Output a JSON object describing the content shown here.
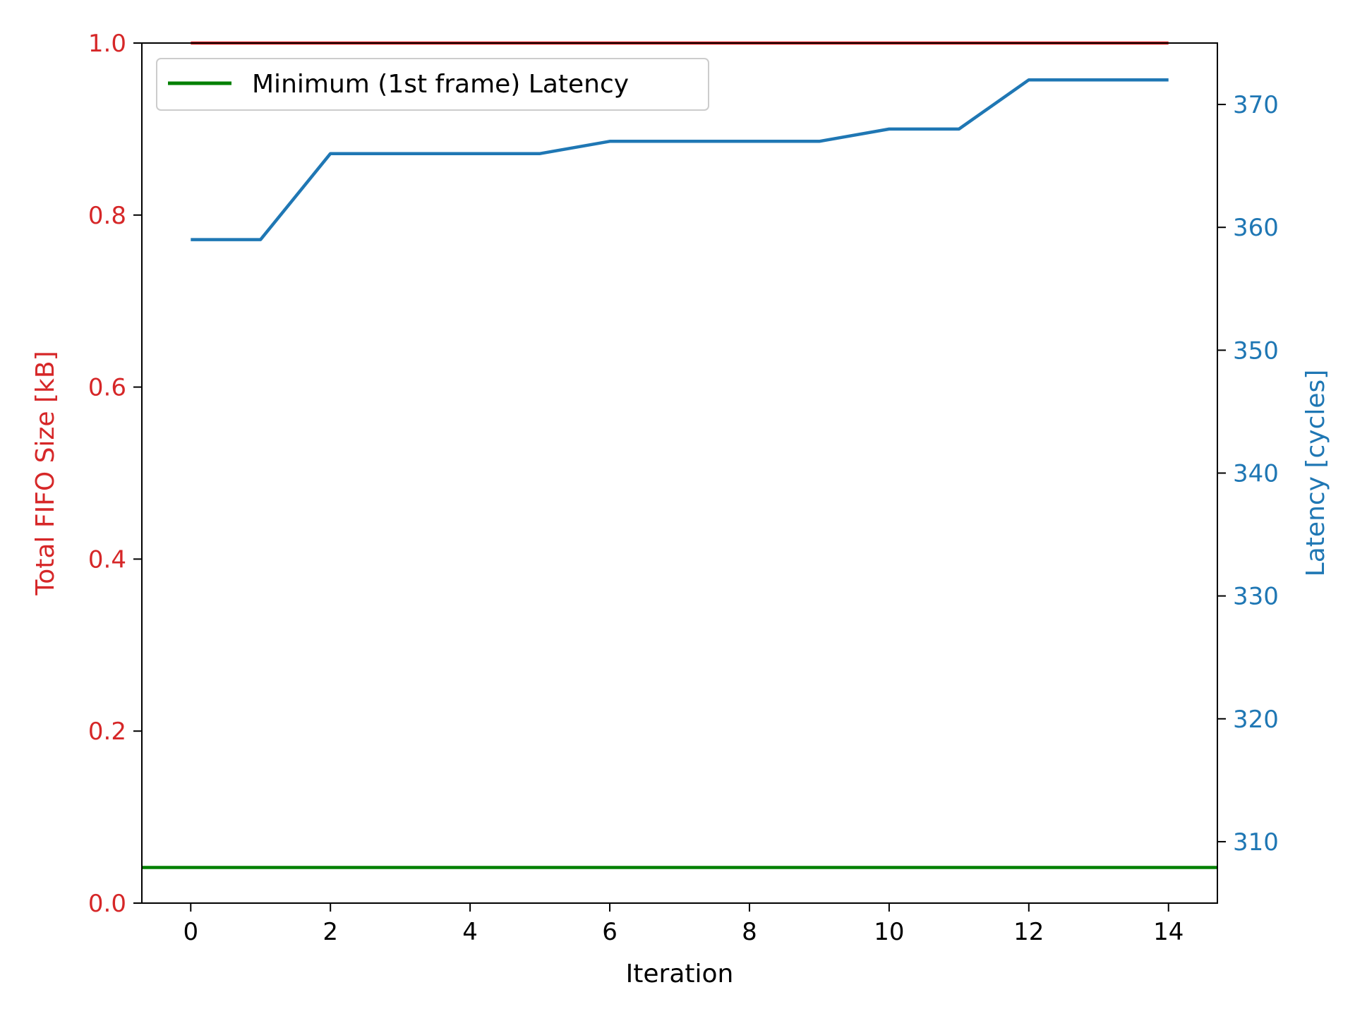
{
  "chart_data": {
    "type": "line",
    "xlabel": "Iteration",
    "ylabel_left": "Total FIFO Size [kB]",
    "ylabel_right": "Latency [cycles]",
    "xlim": [
      -0.7,
      14.7
    ],
    "ylim_left": [
      0.0,
      1.0
    ],
    "ylim_right": [
      305,
      375
    ],
    "x_ticks": [
      0,
      2,
      4,
      6,
      8,
      10,
      12,
      14
    ],
    "x_tick_labels": [
      "0",
      "2",
      "4",
      "6",
      "8",
      "10",
      "12",
      "14"
    ],
    "left_ticks": [
      0.0,
      0.2,
      0.4,
      0.6,
      0.8,
      1.0
    ],
    "left_tick_labels": [
      "0.0",
      "0.2",
      "0.4",
      "0.6",
      "0.8",
      "1.0"
    ],
    "right_ticks": [
      310,
      320,
      330,
      340,
      350,
      360,
      370
    ],
    "right_tick_labels": [
      "310",
      "320",
      "330",
      "340",
      "350",
      "360",
      "370"
    ],
    "legend": {
      "placement": "upper-left",
      "entries": [
        {
          "label": "Minimum (1st frame) Latency",
          "color": "#008000"
        }
      ]
    },
    "colors": {
      "left_axis": "#d62728",
      "right_axis": "#1f77b4",
      "minimum_line": "#008000"
    },
    "grid": false,
    "series": [
      {
        "axis": "left",
        "color": "#d62728",
        "x": [
          0,
          1,
          2,
          3,
          4,
          5,
          6,
          7,
          8,
          9,
          10,
          11,
          12,
          13,
          14
        ],
        "values": [
          1,
          1,
          1,
          1,
          1,
          1,
          1,
          1,
          1,
          1,
          1,
          1,
          1,
          1,
          1
        ]
      },
      {
        "axis": "right",
        "color": "#1f77b4",
        "x": [
          0,
          1,
          2,
          3,
          4,
          5,
          6,
          7,
          8,
          9,
          10,
          11,
          12,
          13,
          14
        ],
        "values": [
          359,
          359,
          366,
          366,
          366,
          366,
          367,
          367,
          367,
          367,
          368,
          368,
          372,
          372,
          372
        ]
      }
    ],
    "horizontal_line": {
      "axis": "right",
      "value": 307.9,
      "color": "#008000"
    }
  }
}
